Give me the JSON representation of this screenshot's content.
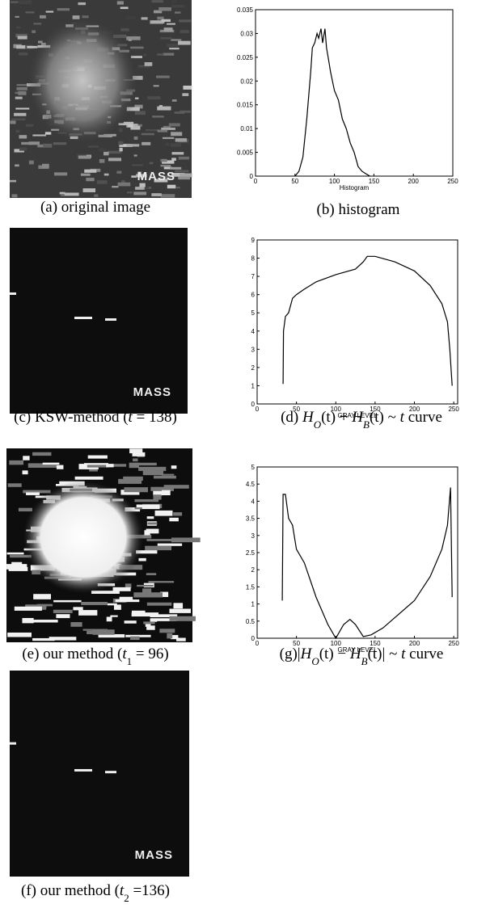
{
  "figures": [
    {
      "overlay": "MASS",
      "caption": [
        {
          "text": "(a) original image"
        }
      ]
    },
    {
      "overlay": "MASS",
      "caption": [
        {
          "text": "(c) KSW-method ("
        },
        {
          "text": "t",
          "italic": true
        },
        {
          "text": " = 138)"
        }
      ]
    },
    {
      "caption": [
        {
          "text": "(e) our method ("
        },
        {
          "text": "t",
          "italic": true
        },
        {
          "text": "1",
          "sub": true
        },
        {
          "text": " = 96)"
        }
      ]
    },
    {
      "overlay": "MASS",
      "caption": [
        {
          "text": "(f) our method ("
        },
        {
          "text": "t",
          "italic": true
        },
        {
          "text": "2",
          "sub": true
        },
        {
          "text": " =136)"
        }
      ]
    }
  ],
  "chart_data": [
    {
      "type": "line",
      "xlabel": "Histogram",
      "caption": [
        {
          "text": "(b) histogram"
        }
      ],
      "x": [
        50,
        55,
        60,
        65,
        70,
        72,
        75,
        78,
        80,
        83,
        85,
        88,
        90,
        93,
        95,
        100,
        105,
        110,
        115,
        120,
        125,
        130,
        135,
        140,
        145
      ],
      "series": [
        {
          "color": "#000000",
          "values": [
            0,
            0.001,
            0.004,
            0.012,
            0.022,
            0.027,
            0.028,
            0.03,
            0.029,
            0.031,
            0.028,
            0.031,
            0.027,
            0.024,
            0.022,
            0.018,
            0.016,
            0.012,
            0.01,
            0.007,
            0.005,
            0.002,
            0.001,
            0.0005,
            0
          ]
        }
      ],
      "xlim": [
        0,
        250
      ],
      "xticks": [
        0,
        50,
        100,
        150,
        200,
        250
      ],
      "ylim": [
        0,
        0.035
      ],
      "yticks": [
        0,
        0.005,
        0.01,
        0.015,
        0.02,
        0.025,
        0.03,
        0.035
      ]
    },
    {
      "type": "line",
      "xlabel": "GRAY LEVEL",
      "caption": [
        {
          "text": "(d) "
        },
        {
          "text": "H",
          "italic": true
        },
        {
          "text": "O",
          "sub": true,
          "italic": true
        },
        {
          "text": "(t) + "
        },
        {
          "text": "H",
          "italic": true
        },
        {
          "text": "B",
          "sub": true,
          "italic": true
        },
        {
          "text": "(t) ~ "
        },
        {
          "text": "t",
          "italic": true
        },
        {
          "text": " curve"
        }
      ],
      "x": [
        33,
        33.5,
        36,
        40,
        45,
        50,
        60,
        75,
        100,
        125,
        135,
        140,
        150,
        175,
        200,
        220,
        235,
        242,
        245,
        248
      ],
      "series": [
        {
          "color": "#000000",
          "values": [
            1.1,
            4,
            4.8,
            5,
            5.8,
            6,
            6.3,
            6.7,
            7.1,
            7.4,
            7.8,
            8.1,
            8.1,
            7.8,
            7.3,
            6.5,
            5.5,
            4.5,
            3,
            1
          ]
        }
      ],
      "xlim": [
        0,
        255
      ],
      "xticks": [
        0,
        50,
        100,
        150,
        200,
        250
      ],
      "ylim": [
        0,
        9
      ],
      "yticks": [
        0,
        1,
        2,
        3,
        4,
        5,
        6,
        7,
        8,
        9
      ]
    },
    {
      "type": "line",
      "xlabel": "GRAY LEVEL",
      "caption": [
        {
          "text": "(g)|"
        },
        {
          "text": "H",
          "italic": true
        },
        {
          "text": "O",
          "sub": true,
          "italic": true
        },
        {
          "text": "(t) − "
        },
        {
          "text": "H",
          "italic": true
        },
        {
          "text": "B",
          "sub": true,
          "italic": true
        },
        {
          "text": "(t)| ~ "
        },
        {
          "text": "t",
          "italic": true
        },
        {
          "text": " curve"
        }
      ],
      "x": [
        32,
        33,
        36,
        40,
        45,
        50,
        60,
        75,
        90,
        100,
        110,
        118,
        125,
        135,
        145,
        160,
        175,
        200,
        220,
        235,
        242,
        246,
        248
      ],
      "series": [
        {
          "color": "#000000",
          "values": [
            1.1,
            4.2,
            4.2,
            3.5,
            3.3,
            2.6,
            2.2,
            1.2,
            0.4,
            0,
            0.4,
            0.55,
            0.4,
            0.05,
            0.1,
            0.3,
            0.6,
            1.1,
            1.8,
            2.6,
            3.3,
            4.4,
            1.2
          ]
        }
      ],
      "xlim": [
        0,
        255
      ],
      "xticks": [
        0,
        50,
        100,
        150,
        200,
        250
      ],
      "ylim": [
        0,
        5
      ],
      "yticks": [
        0,
        0.5,
        1,
        1.5,
        2,
        2.5,
        3,
        3.5,
        4,
        4.5,
        5
      ]
    }
  ]
}
